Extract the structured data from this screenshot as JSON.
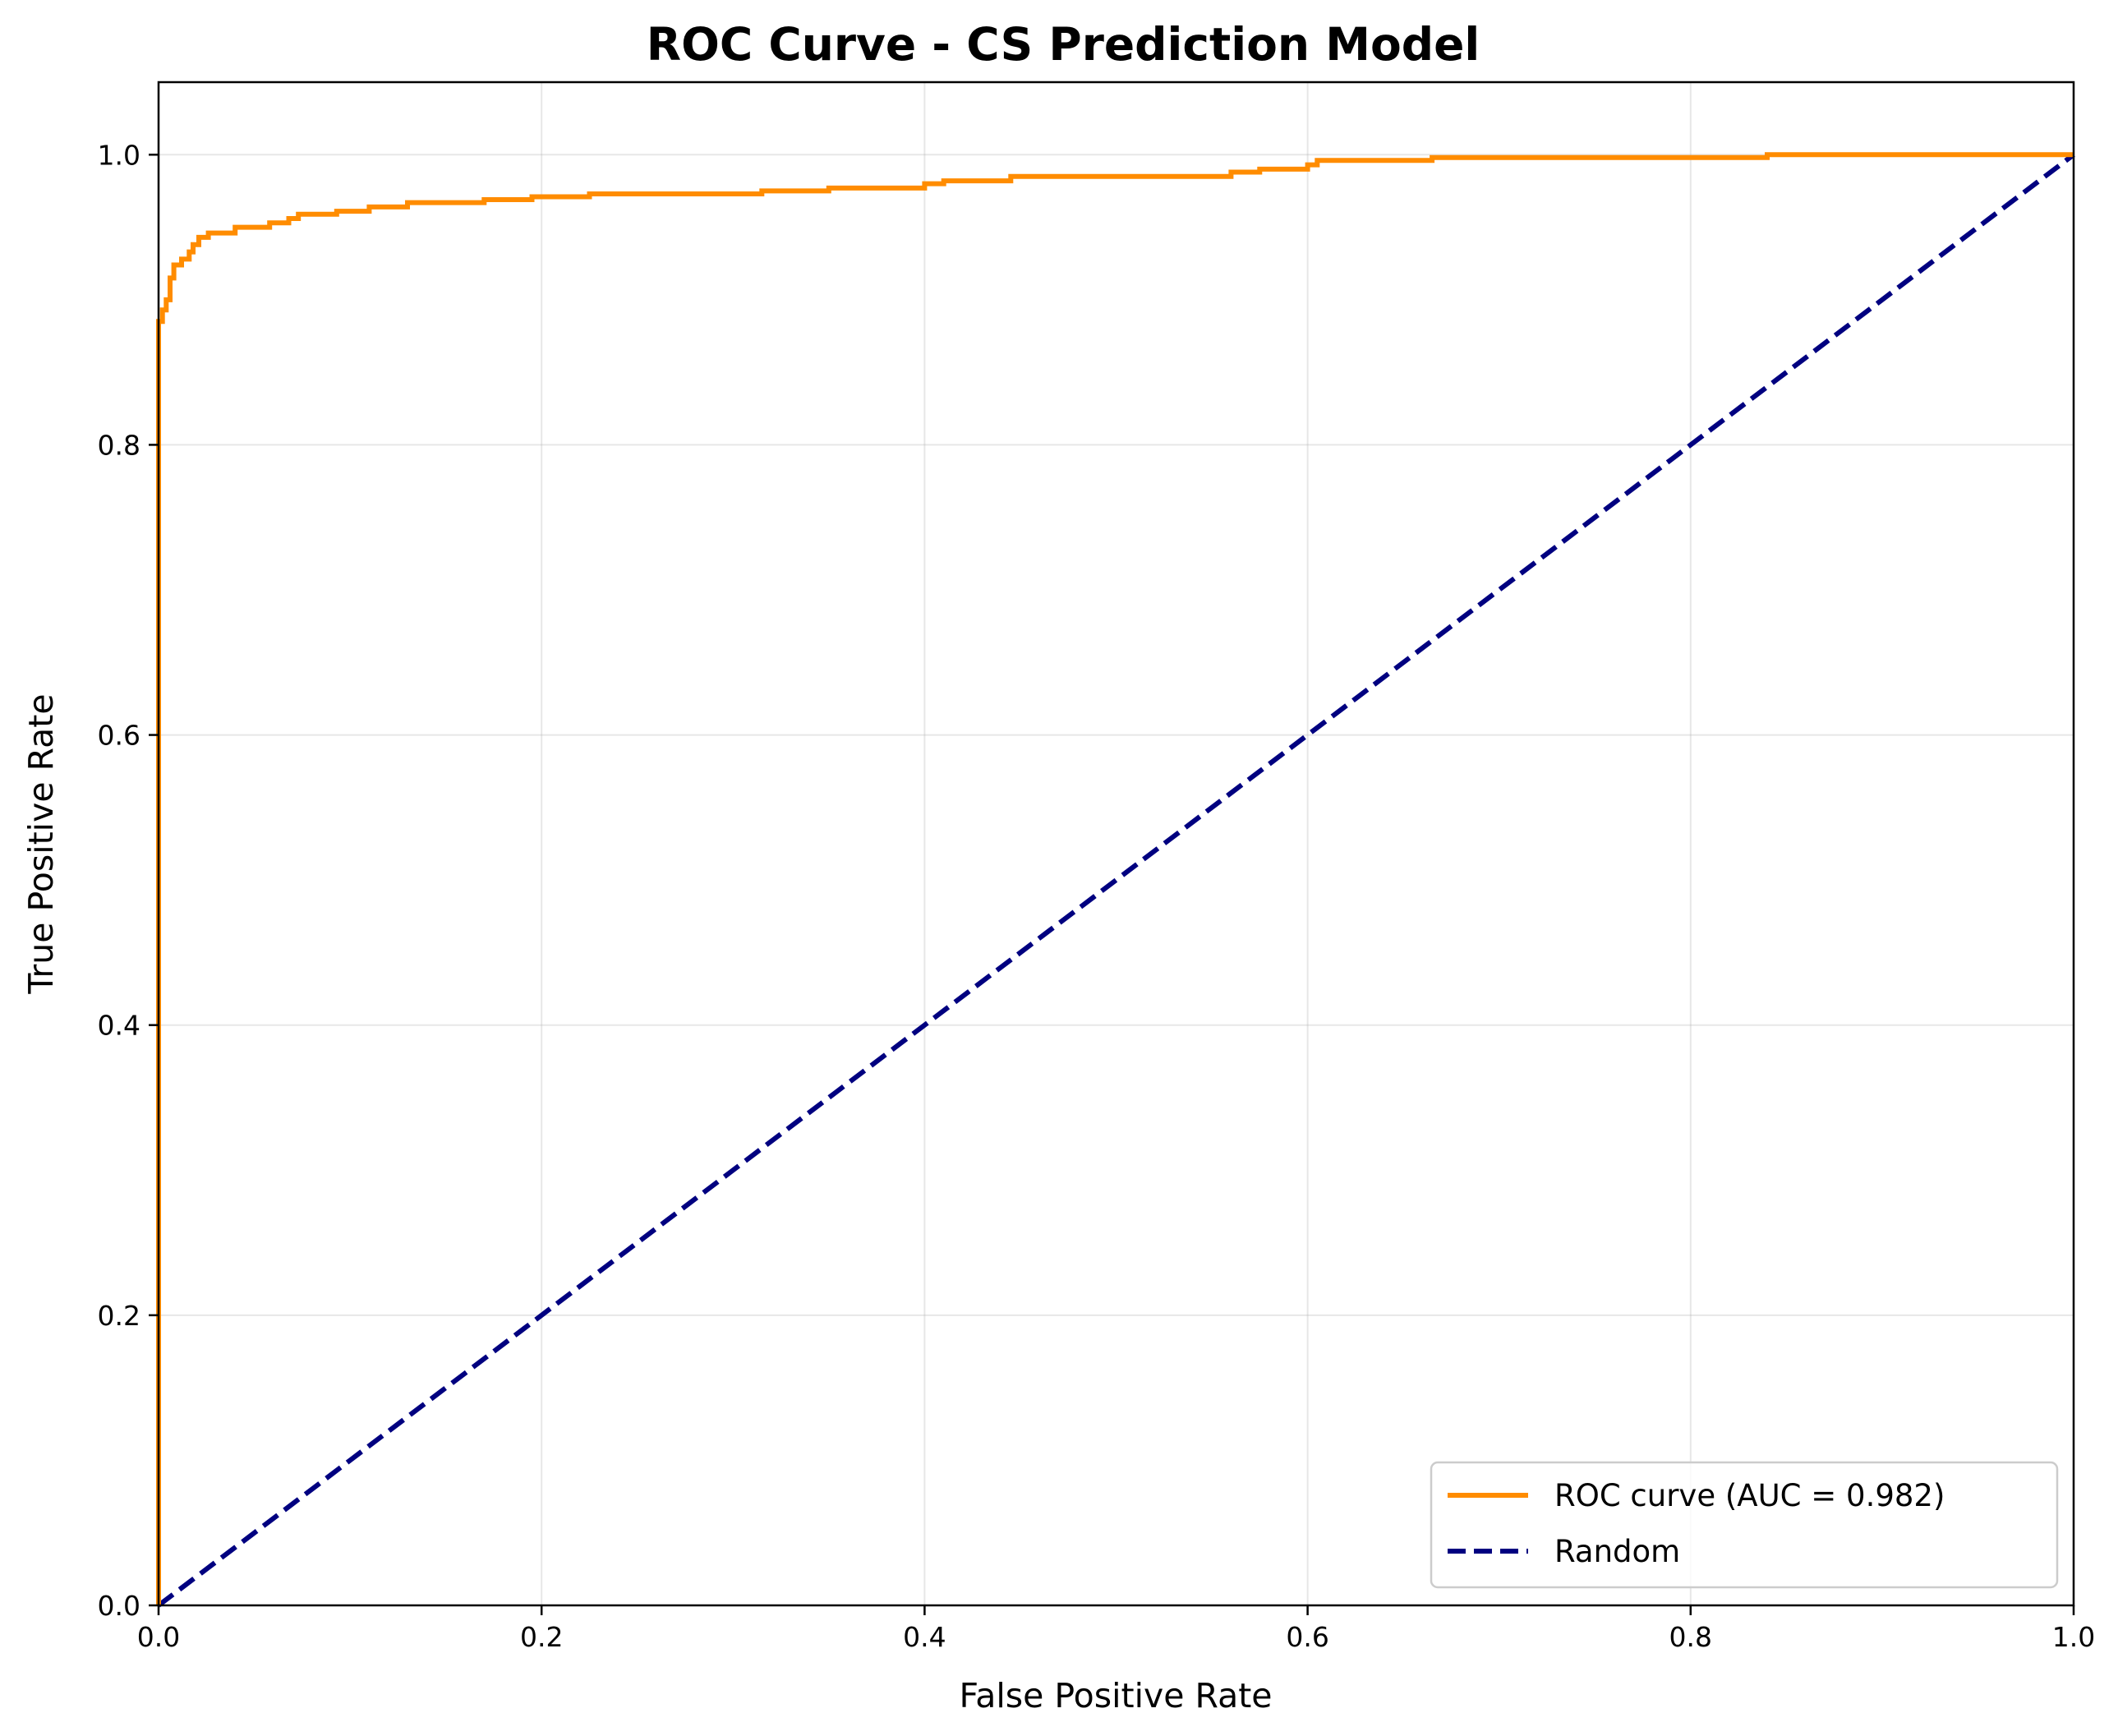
{
  "chart_data": {
    "type": "line",
    "title": "ROC Curve - CS Prediction Model",
    "xlabel": "False Positive Rate",
    "ylabel": "True Positive Rate",
    "xlim": [
      0.0,
      1.0
    ],
    "ylim": [
      0.0,
      1.05
    ],
    "xticks": [
      "0.0",
      "0.2",
      "0.4",
      "0.6",
      "0.8",
      "1.0"
    ],
    "yticks": [
      "0.0",
      "0.2",
      "0.4",
      "0.6",
      "0.8",
      "1.0"
    ],
    "grid": true,
    "legend_position": "lower-right",
    "series": [
      {
        "name": "ROC curve (AUC = 0.982)",
        "color": "#ff8c00",
        "style": "solid",
        "x": [
          0.0,
          0.0,
          0.0,
          0.0,
          0.002,
          0.002,
          0.004,
          0.004,
          0.006,
          0.006,
          0.008,
          0.008,
          0.012,
          0.012,
          0.016,
          0.016,
          0.018,
          0.018,
          0.021,
          0.021,
          0.026,
          0.026,
          0.04,
          0.04,
          0.058,
          0.058,
          0.068,
          0.068,
          0.073,
          0.073,
          0.093,
          0.093,
          0.11,
          0.11,
          0.13,
          0.13,
          0.17,
          0.17,
          0.195,
          0.195,
          0.225,
          0.225,
          0.315,
          0.315,
          0.35,
          0.35,
          0.4,
          0.4,
          0.41,
          0.41,
          0.445,
          0.445,
          0.56,
          0.56,
          0.575,
          0.575,
          0.6,
          0.6,
          0.605,
          0.605,
          0.665,
          0.665,
          0.84,
          0.84,
          1.0
        ],
        "y": [
          0.0,
          0.2,
          0.8,
          0.885,
          0.885,
          0.893,
          0.893,
          0.9,
          0.9,
          0.915,
          0.915,
          0.924,
          0.924,
          0.928,
          0.928,
          0.933,
          0.933,
          0.938,
          0.938,
          0.943,
          0.943,
          0.946,
          0.946,
          0.95,
          0.95,
          0.953,
          0.953,
          0.956,
          0.956,
          0.959,
          0.959,
          0.961,
          0.961,
          0.964,
          0.964,
          0.967,
          0.967,
          0.969,
          0.969,
          0.971,
          0.971,
          0.973,
          0.973,
          0.975,
          0.975,
          0.977,
          0.977,
          0.98,
          0.98,
          0.982,
          0.982,
          0.985,
          0.985,
          0.988,
          0.988,
          0.99,
          0.99,
          0.993,
          0.993,
          0.996,
          0.996,
          0.998,
          0.998,
          1.0,
          1.0
        ]
      },
      {
        "name": "Random",
        "color": "#000080",
        "style": "dashed",
        "x": [
          0.0,
          1.0
        ],
        "y": [
          0.0,
          1.0
        ]
      }
    ]
  }
}
